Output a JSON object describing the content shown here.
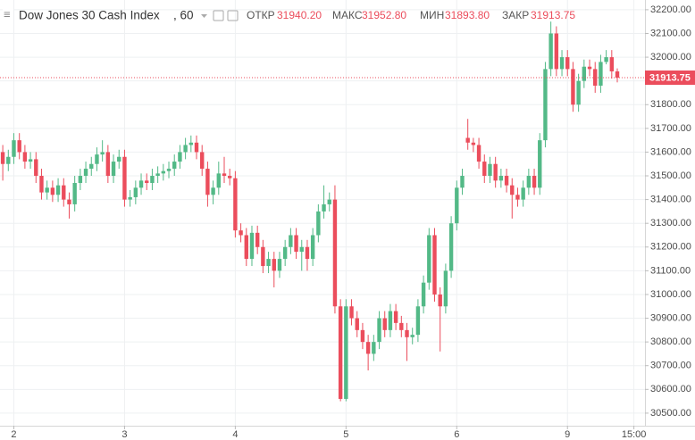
{
  "chart_data": {
    "type": "candlestick",
    "title": "Dow Jones 30 Cash Index",
    "interval": ", 60",
    "header": [
      {
        "name": "ОТКР",
        "value": {
          "value": 31940.2,
          "label": "31940.20"
        }
      },
      {
        "name": "МАКС",
        "value": {
          "value": 31952.8,
          "label": "31952.80"
        }
      },
      {
        "name": "МИН",
        "value": {
          "value": 31893.8,
          "label": "31893.80"
        }
      },
      {
        "name": "ЗАКР",
        "value": {
          "value": 31913.75,
          "label": "31913.75"
        }
      }
    ],
    "up_color": "#53b987",
    "down_color": "#eb4d5c",
    "grid": true,
    "x": [
      -2,
      -1,
      0,
      1,
      2,
      3,
      4,
      5,
      6,
      7,
      8,
      9,
      10,
      11,
      12,
      13,
      14,
      15,
      16,
      17,
      18,
      19,
      20,
      21,
      22,
      23,
      24,
      25,
      26,
      27,
      28,
      29,
      30,
      31,
      32,
      33,
      34,
      35,
      36,
      37,
      38,
      39,
      40,
      41,
      42,
      43,
      44,
      45,
      46,
      47,
      48,
      49,
      50,
      51,
      52,
      53,
      54,
      55,
      56,
      57,
      58,
      59,
      60,
      61,
      62,
      63,
      64,
      65,
      66,
      67,
      68,
      69,
      70,
      71,
      72,
      73,
      74,
      75,
      76,
      77,
      78,
      79,
      80,
      81,
      82,
      83,
      84,
      85,
      86,
      87,
      88,
      89,
      90,
      91,
      92,
      93,
      94,
      95,
      96,
      97,
      98,
      99,
      100,
      101,
      102,
      103,
      104,
      105,
      106,
      107,
      108,
      109
    ],
    "open": [
      31600,
      31550,
      31580,
      31650,
      31600,
      31560,
      31570,
      31500,
      31430,
      31450,
      31420,
      31460,
      31400,
      31380,
      31470,
      31500,
      31530,
      31550,
      31590,
      31600,
      31500,
      31560,
      31580,
      31400,
      31410,
      31450,
      31480,
      31470,
      31500,
      31510,
      31520,
      31530,
      31560,
      31600,
      31630,
      31640,
      31600,
      31530,
      31420,
      31450,
      31510,
      31500,
      31490,
      31270,
      31250,
      31150,
      31260,
      31200,
      31120,
      31150,
      31100,
      31150,
      31200,
      31250,
      31180,
      31200,
      31150,
      31250,
      31350,
      31380,
      31400,
      30950,
      30560,
      30950,
      30900,
      30850,
      30800,
      30750,
      30800,
      30900,
      30850,
      30930,
      30880,
      30850,
      30820,
      30830,
      30950,
      31050,
      31250,
      31000,
      30950,
      31100,
      31300,
      31450,
      31660,
      31640,
      31630,
      31560,
      31500,
      31550,
      31480,
      31500,
      31460,
      31420,
      31400,
      31450,
      31500,
      31450,
      31650,
      31950,
      32100,
      31950,
      32000,
      31950,
      31800,
      31900,
      31960,
      31950,
      31880,
      31980,
      32000,
      31940.2
    ],
    "high": [
      31630,
      31610,
      31680,
      31680,
      31630,
      31600,
      31600,
      31530,
      31480,
      31480,
      31490,
      31490,
      31430,
      31500,
      31530,
      31560,
      31580,
      31620,
      31650,
      31630,
      31590,
      31610,
      31610,
      31440,
      31480,
      31510,
      31510,
      31530,
      31540,
      31550,
      31560,
      31590,
      31630,
      31660,
      31670,
      31670,
      31630,
      31560,
      31480,
      31560,
      31580,
      31530,
      31520,
      31300,
      31280,
      31290,
      31290,
      31230,
      31180,
      31180,
      31180,
      31230,
      31280,
      31280,
      31230,
      31230,
      31280,
      31380,
      31460,
      31430,
      31460,
      30980,
      30980,
      30980,
      30930,
      30880,
      30830,
      30830,
      30930,
      30930,
      30960,
      30960,
      30910,
      30880,
      30860,
      30980,
      31080,
      31280,
      31280,
      31030,
      31130,
      31330,
      31480,
      31530,
      31740,
      31660,
      31660,
      31590,
      31580,
      31580,
      31530,
      31530,
      31490,
      31450,
      31480,
      31530,
      31530,
      31680,
      31980,
      32150,
      32130,
      32030,
      32030,
      31980,
      31930,
      31990,
      31990,
      31980,
      32010,
      32030,
      32030,
      31952.8
    ],
    "low": [
      31480,
      31520,
      31550,
      31570,
      31530,
      31530,
      31470,
      31400,
      31400,
      31390,
      31390,
      31370,
      31320,
      31350,
      31440,
      31470,
      31500,
      31520,
      31560,
      31470,
      31470,
      31530,
      31370,
      31370,
      31380,
      31420,
      31440,
      31440,
      31470,
      31480,
      31490,
      31500,
      31530,
      31570,
      31600,
      31570,
      31500,
      31370,
      31380,
      31420,
      31470,
      31460,
      31240,
      31220,
      31120,
      31120,
      31170,
      31090,
      31090,
      31030,
      31070,
      31120,
      31170,
      31150,
      31100,
      31100,
      31120,
      31220,
      31320,
      31350,
      30920,
      30550,
      30550,
      30870,
      30820,
      30770,
      30680,
      30720,
      30770,
      30820,
      30820,
      30850,
      30820,
      30720,
      30790,
      30800,
      30920,
      31020,
      30970,
      30760,
      30920,
      31070,
      31270,
      31420,
      31610,
      31600,
      31530,
      31470,
      31470,
      31450,
      31450,
      31430,
      31320,
      31370,
      31370,
      31420,
      31420,
      31420,
      31620,
      31920,
      31920,
      31920,
      31920,
      31770,
      31770,
      31870,
      31920,
      31850,
      31850,
      31970,
      31910,
      31893.8
    ],
    "close": [
      31550,
      31580,
      31650,
      31600,
      31560,
      31570,
      31500,
      31430,
      31450,
      31420,
      31460,
      31400,
      31380,
      31470,
      31500,
      31530,
      31550,
      31590,
      31600,
      31500,
      31560,
      31580,
      31400,
      31410,
      31450,
      31480,
      31470,
      31500,
      31510,
      31520,
      31530,
      31560,
      31600,
      31630,
      31640,
      31600,
      31530,
      31420,
      31450,
      31510,
      31500,
      31490,
      31270,
      31250,
      31150,
      31260,
      31200,
      31120,
      31150,
      31100,
      31150,
      31200,
      31250,
      31180,
      31200,
      31150,
      31250,
      31350,
      31380,
      31400,
      30950,
      30560,
      30950,
      30900,
      30850,
      30800,
      30750,
      30800,
      30900,
      30850,
      30930,
      30880,
      30850,
      30820,
      30830,
      30950,
      31050,
      31250,
      31000,
      30950,
      31100,
      31300,
      31450,
      31500,
      31640,
      31630,
      31560,
      31500,
      31550,
      31480,
      31500,
      31460,
      31420,
      31400,
      31450,
      31500,
      31450,
      31650,
      31950,
      32100,
      31950,
      32000,
      31950,
      31800,
      31900,
      31960,
      31950,
      31880,
      31980,
      32000,
      31940.2,
      31913.75
    ],
    "xlim": [
      -2.5,
      114
    ],
    "xticks": [
      {
        "value": 0,
        "label": "2"
      },
      {
        "value": 20,
        "label": "3"
      },
      {
        "value": 40,
        "label": "4"
      },
      {
        "value": 60,
        "label": "5"
      },
      {
        "value": 80,
        "label": "6"
      },
      {
        "value": 100,
        "label": "9"
      },
      {
        "value": 112,
        "label": "15:00"
      }
    ],
    "ylim": [
      30447,
      32241
    ],
    "yticks": [
      {
        "value": 30500,
        "label": "30500.00"
      },
      {
        "value": 30600,
        "label": "30600.00"
      },
      {
        "value": 30700,
        "label": "30700.00"
      },
      {
        "value": 30800,
        "label": "30800.00"
      },
      {
        "value": 30900,
        "label": "30900.00"
      },
      {
        "value": 31000,
        "label": "31000.00"
      },
      {
        "value": 31100,
        "label": "31100.00"
      },
      {
        "value": 31200,
        "label": "31200.00"
      },
      {
        "value": 31300,
        "label": "31300.00"
      },
      {
        "value": 31400,
        "label": "31400.00"
      },
      {
        "value": 31500,
        "label": "31500.00"
      },
      {
        "value": 31600,
        "label": "31600.00"
      },
      {
        "value": 31700,
        "label": "31700.00"
      },
      {
        "value": 31800,
        "label": "31800.00"
      },
      {
        "value": 31900,
        "label": "31900.00"
      },
      {
        "value": 32000,
        "label": "32000.00"
      },
      {
        "value": 32100,
        "label": "32100.00"
      },
      {
        "value": 32200,
        "label": "32200.00"
      }
    ]
  }
}
